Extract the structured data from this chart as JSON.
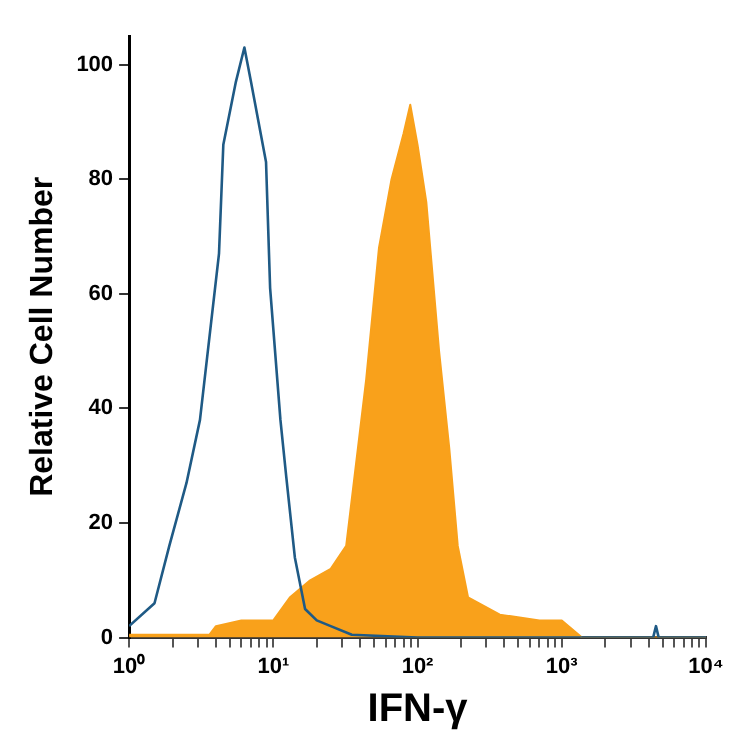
{
  "chart_data": {
    "type": "area",
    "xlabel": "IFN-γ",
    "ylabel": "Relative Cell Number",
    "log": "x",
    "xlim": [
      1,
      10000
    ],
    "ylim": [
      0,
      105
    ],
    "xticks": [
      {
        "value": 1,
        "label": "10⁰"
      },
      {
        "value": 2,
        "label": null
      },
      {
        "value": 3,
        "label": null
      },
      {
        "value": 4,
        "label": null
      },
      {
        "value": 5,
        "label": null
      },
      {
        "value": 6,
        "label": null
      },
      {
        "value": 7,
        "label": null
      },
      {
        "value": 8,
        "label": null
      },
      {
        "value": 9,
        "label": null
      },
      {
        "value": 10,
        "label": "10¹"
      },
      {
        "value": 20,
        "label": null
      },
      {
        "value": 30,
        "label": null
      },
      {
        "value": 40,
        "label": null
      },
      {
        "value": 50,
        "label": null
      },
      {
        "value": 60,
        "label": null
      },
      {
        "value": 70,
        "label": null
      },
      {
        "value": 80,
        "label": null
      },
      {
        "value": 90,
        "label": null
      },
      {
        "value": 100,
        "label": "10²"
      },
      {
        "value": 200,
        "label": null
      },
      {
        "value": 300,
        "label": null
      },
      {
        "value": 400,
        "label": null
      },
      {
        "value": 500,
        "label": null
      },
      {
        "value": 600,
        "label": null
      },
      {
        "value": 700,
        "label": null
      },
      {
        "value": 800,
        "label": null
      },
      {
        "value": 900,
        "label": null
      },
      {
        "value": 1000,
        "label": "10³"
      },
      {
        "value": 2000,
        "label": null
      },
      {
        "value": 3000,
        "label": null
      },
      {
        "value": 4000,
        "label": null
      },
      {
        "value": 5000,
        "label": null
      },
      {
        "value": 6000,
        "label": null
      },
      {
        "value": 7000,
        "label": null
      },
      {
        "value": 8000,
        "label": null
      },
      {
        "value": 9000,
        "label": null
      },
      {
        "value": 10000,
        "label": "10⁴"
      }
    ],
    "yticks": [
      0,
      20,
      40,
      60,
      80,
      100
    ],
    "series": [
      {
        "type": "area",
        "color": "#f9a11b",
        "x": [
          1,
          3.6,
          4,
          6,
          10,
          13,
          18,
          25,
          32,
          44,
          54,
          66,
          80,
          89,
          100,
          115,
          141,
          166,
          190,
          224,
          372,
          700,
          1000,
          1380,
          10000
        ],
        "values": [
          0.5,
          0.5,
          2,
          3,
          3,
          7,
          10,
          12,
          16,
          45,
          68,
          80,
          88,
          93,
          86,
          76,
          50,
          33,
          16,
          7,
          4,
          3,
          3,
          0,
          0
        ]
      },
      {
        "type": "line",
        "color": "#1f5a85",
        "x": [
          1,
          1.5,
          1.9,
          2.5,
          3.1,
          4.2,
          4.5,
          5.5,
          6.3,
          7,
          8.9,
          9.5,
          11.2,
          12.3,
          14.1,
          16.6,
          20,
          25,
          35,
          100,
          1000,
          4300,
          4500,
          4700,
          10000
        ],
        "values": [
          2,
          6,
          16,
          27,
          38,
          67,
          86,
          97,
          103,
          97,
          83,
          61,
          38,
          28,
          14,
          5,
          3,
          2,
          0.5,
          0,
          0,
          0,
          2,
          0,
          0
        ]
      }
    ]
  }
}
